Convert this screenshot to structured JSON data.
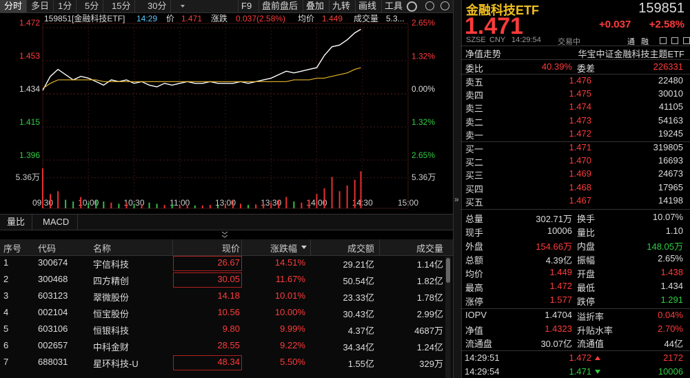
{
  "toolbar": {
    "tabs": [
      "分时",
      "多日",
      "1分",
      "5分",
      "15分",
      "30分"
    ],
    "tools": [
      "F9",
      "盘前盘后",
      "叠加",
      "九转",
      "画线",
      "工具"
    ]
  },
  "chart_data": {
    "type": "line",
    "header": {
      "symbol": "159851[金融科技ETF]",
      "time": "14:29",
      "price_label": "价",
      "price": "1.471",
      "change_label": "涨跌",
      "change": "0.037(2.58%)",
      "avg_label": "均价",
      "avg": "1.449",
      "volume_label": "成交量",
      "volume": "5.3..."
    },
    "x": [
      "09:30",
      "09:35",
      "09:40",
      "09:45",
      "09:50",
      "09:55",
      "10:00",
      "10:05",
      "10:10",
      "10:15",
      "10:20",
      "10:25",
      "10:30",
      "10:35",
      "10:40",
      "10:45",
      "10:50",
      "10:55",
      "11:00",
      "11:05",
      "11:10",
      "11:15",
      "11:20",
      "11:25",
      "11:30",
      "13:05",
      "13:10",
      "13:15",
      "13:20",
      "13:25",
      "13:30",
      "13:35",
      "13:40",
      "13:45",
      "13:50",
      "13:55",
      "14:00",
      "14:05",
      "14:10",
      "14:15",
      "14:20",
      "14:25",
      "14:29"
    ],
    "series": [
      {
        "color": "#ffffff",
        "values": [
          1.436,
          1.444,
          1.448,
          1.445,
          1.442,
          1.444,
          1.443,
          1.441,
          1.439,
          1.442,
          1.441,
          1.442,
          1.44,
          1.441,
          1.439,
          1.438,
          1.44,
          1.439,
          1.44,
          1.441,
          1.44,
          1.44,
          1.441,
          1.44,
          1.44,
          1.44,
          1.441,
          1.44,
          1.441,
          1.442,
          1.443,
          1.445,
          1.447,
          1.446,
          1.447,
          1.448,
          1.449,
          1.456,
          1.461,
          1.462,
          1.465,
          1.469,
          1.471
        ]
      },
      {
        "color": "#e6b42c",
        "values": [
          1.437,
          1.44,
          1.442,
          1.442,
          1.442,
          1.442,
          1.442,
          1.442,
          1.441,
          1.441,
          1.441,
          1.441,
          1.441,
          1.441,
          1.441,
          1.441,
          1.441,
          1.441,
          1.441,
          1.441,
          1.441,
          1.441,
          1.441,
          1.441,
          1.441,
          1.441,
          1.441,
          1.441,
          1.441,
          1.441,
          1.441,
          1.441,
          1.441,
          1.442,
          1.442,
          1.442,
          1.443,
          1.443,
          1.444,
          1.445,
          1.446,
          1.448,
          1.449
        ]
      }
    ],
    "ylim": [
      1.396,
      1.472
    ],
    "yticks": [
      1.396,
      1.415,
      1.434,
      1.453,
      1.472
    ],
    "y2lim": [
      -2.65,
      2.65
    ],
    "y2ticks": [
      {
        "value": -2.65,
        "label": "2.65%"
      },
      {
        "value": -1.32,
        "label": "1.32%"
      },
      {
        "value": 0,
        "label": "0.00%"
      },
      {
        "value": 1.32,
        "label": "1.32%"
      },
      {
        "value": 2.65,
        "label": "2.65%"
      }
    ],
    "xticks": [
      "09:30",
      "10:00",
      "10:30",
      "11:00",
      "13:00",
      "13:30",
      "14:00",
      "14:30",
      "15:00"
    ],
    "grid": true,
    "volume": {
      "up_color": "#e8312f",
      "down_color": "#2fbf4a",
      "values": [
        7.0,
        2.5,
        3.0,
        1.5,
        1.2,
        2.0,
        1.0,
        1.5,
        1.2,
        1.0,
        0.8,
        1.0,
        0.8,
        0.7,
        1.0,
        0.8,
        0.6,
        0.7,
        0.5,
        0.6,
        0.5,
        0.5,
        0.6,
        0.5,
        0.8,
        1.5,
        0.8,
        0.6,
        0.7,
        0.9,
        1.0,
        1.5,
        2.0,
        1.2,
        1.0,
        1.5,
        2.5,
        3.5,
        5.5,
        3.0,
        4.0,
        5.0,
        6.5
      ],
      "ylim": [
        0,
        7.5
      ],
      "yticks": [
        {
          "value": 5.36,
          "label": "5.36万"
        }
      ]
    }
  },
  "side_toggle": "»",
  "sub_tabs": [
    "量比",
    "MACD"
  ],
  "table": {
    "headers": [
      "序号",
      "代码",
      "名称",
      "现价",
      "涨跌幅",
      "成交额",
      "成交量"
    ],
    "rows": [
      [
        "1",
        "300674",
        "宇信科技",
        "26.67",
        "14.51%",
        "29.21亿",
        "1.14亿"
      ],
      [
        "2",
        "300468",
        "四方精创",
        "30.05",
        "11.67%",
        "50.54亿",
        "1.82亿"
      ],
      [
        "3",
        "603123",
        "翠微股份",
        "14.18",
        "10.01%",
        "23.33亿",
        "1.78亿"
      ],
      [
        "4",
        "002104",
        "恒宝股份",
        "10.56",
        "10.00%",
        "30.43亿",
        "2.99亿"
      ],
      [
        "5",
        "603106",
        "恒银科技",
        "9.80",
        "9.99%",
        "4.37亿",
        "4687万"
      ],
      [
        "6",
        "002657",
        "中科金财",
        "28.55",
        "9.22%",
        "34.34亿",
        "1.24亿"
      ],
      [
        "7",
        "688031",
        "星环科技-U",
        "48.34",
        "5.50%",
        "1.55亿",
        "329万"
      ]
    ]
  },
  "quote": {
    "name": "金融科技ETF",
    "code": "159851",
    "price": "1.471",
    "change": "+0.037",
    "change_pct": "+2.58%",
    "exchange": "SZSE",
    "currency": "CNY",
    "time": "14:29:54",
    "status": "交易中",
    "badges": [
      "通",
      "融"
    ],
    "nav_trend": "净值走势",
    "full_name": "华宝中证金融科技主题ETF",
    "ratio": [
      "委比",
      "40.39%",
      "委差",
      "226331"
    ],
    "asks": [
      [
        "卖五",
        "1.476",
        "22480"
      ],
      [
        "卖四",
        "1.475",
        "30010"
      ],
      [
        "卖三",
        "1.474",
        "41105"
      ],
      [
        "卖二",
        "1.473",
        "54163"
      ],
      [
        "卖一",
        "1.472",
        "19245"
      ]
    ],
    "bids": [
      [
        "买一",
        "1.471",
        "319805"
      ],
      [
        "买二",
        "1.470",
        "16693"
      ],
      [
        "买三",
        "1.469",
        "24673"
      ],
      [
        "买四",
        "1.468",
        "17965"
      ],
      [
        "买五",
        "1.467",
        "14198"
      ]
    ],
    "stats": [
      [
        "总量",
        "302.71万",
        "换手",
        "10.07%"
      ],
      [
        "现手",
        "10006",
        "量比",
        "1.10"
      ],
      [
        "外盘",
        "154.66万",
        "内盘",
        "148.05万"
      ],
      [
        "总额",
        "4.39亿",
        "振幅",
        "2.65%"
      ],
      [
        "均价",
        "1.449",
        "开盘",
        "1.438"
      ],
      [
        "最高",
        "1.472",
        "最低",
        "1.434"
      ],
      [
        "涨停",
        "1.577",
        "跌停",
        "1.291"
      ]
    ],
    "fund": [
      [
        "IOPV",
        "1.4704",
        "溢折率",
        "0.04%"
      ],
      [
        "净值",
        "1.4323",
        "升贴水率",
        "2.70%"
      ],
      [
        "流通盘",
        "30.07亿",
        "流通值",
        "44亿"
      ]
    ],
    "trades": [
      [
        "14:29:51",
        "1.472",
        "2172"
      ],
      [
        "14:29:54",
        "1.471",
        "10006"
      ]
    ]
  }
}
